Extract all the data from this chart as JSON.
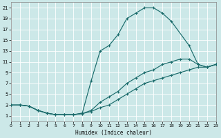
{
  "xlabel": "Humidex (Indice chaleur)",
  "background_color": "#cce8e8",
  "grid_color": "#b0d0d0",
  "line_color": "#1a6b6b",
  "xlim": [
    0,
    23
  ],
  "ylim": [
    0,
    22
  ],
  "xticks": [
    0,
    1,
    2,
    3,
    4,
    5,
    6,
    7,
    8,
    9,
    10,
    11,
    12,
    13,
    14,
    15,
    16,
    17,
    18,
    19,
    20,
    21,
    22,
    23
  ],
  "yticks": [
    1,
    3,
    5,
    7,
    9,
    11,
    13,
    15,
    17,
    19,
    21
  ],
  "curve_arch_x": [
    1,
    2,
    3,
    4,
    5,
    6,
    7,
    8,
    9,
    10,
    11,
    12,
    13,
    14,
    15,
    16,
    17,
    18,
    20,
    21,
    22,
    23
  ],
  "curve_arch_y": [
    3,
    2.8,
    2.0,
    1.5,
    1.2,
    1.2,
    1.2,
    1.5,
    7.5,
    13,
    14,
    16,
    19,
    20,
    21,
    21,
    20,
    18.5,
    14,
    10.5,
    10,
    10.5
  ],
  "curve_mid_x": [
    0,
    1,
    2,
    3,
    4,
    5,
    6,
    7,
    8,
    9,
    10,
    11,
    12,
    13,
    14,
    15,
    16,
    17,
    18,
    19,
    20,
    21,
    22,
    23
  ],
  "curve_mid_y": [
    3,
    3,
    2.8,
    2.0,
    1.5,
    1.2,
    1.2,
    1.2,
    1.4,
    2.0,
    3.5,
    4.5,
    5.5,
    7.0,
    8.0,
    9.0,
    9.5,
    10.5,
    11,
    11.5,
    11.5,
    10.5,
    10,
    10.5
  ],
  "curve_low_x": [
    0,
    1,
    2,
    3,
    4,
    5,
    6,
    7,
    8,
    9,
    10,
    11,
    12,
    13,
    14,
    15,
    16,
    17,
    18,
    19,
    20,
    21,
    22,
    23
  ],
  "curve_low_y": [
    3,
    3,
    2.8,
    2.0,
    1.5,
    1.2,
    1.2,
    1.2,
    1.4,
    1.8,
    2.5,
    3.0,
    4.0,
    5.0,
    6.0,
    7.0,
    7.5,
    8.0,
    8.5,
    9.0,
    9.5,
    10.0,
    10.0,
    10.5
  ]
}
